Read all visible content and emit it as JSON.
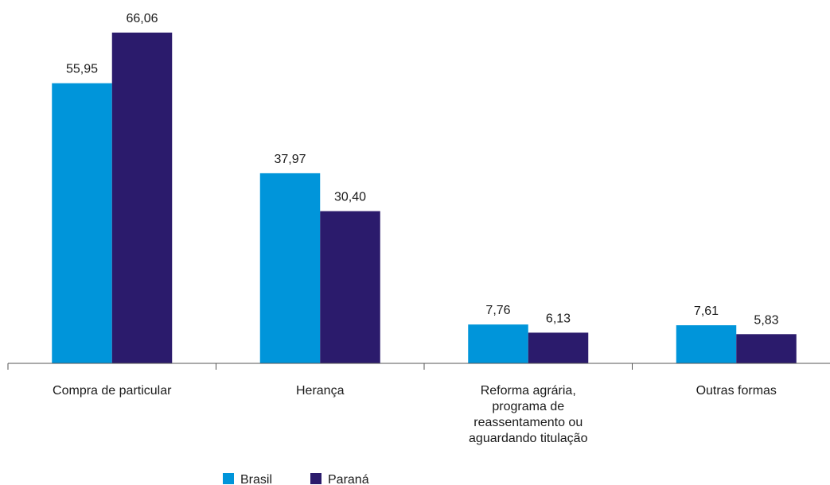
{
  "chart_data": {
    "type": "bar",
    "categories": [
      "Compra de particular",
      "Herança",
      "Reforma agrária,\nprograma de\nreassentamento ou\naguardando titulação",
      "Outras formas"
    ],
    "series": [
      {
        "name": "Brasil",
        "color": "#0095da",
        "values": [
          55.95,
          37.97,
          7.76,
          7.61
        ],
        "value_labels": [
          "55,95",
          "37,97",
          "7,76",
          "7,61"
        ]
      },
      {
        "name": "Paraná",
        "color": "#2b1b6c",
        "values": [
          66.06,
          30.4,
          6.13,
          5.83
        ],
        "value_labels": [
          "66,06",
          "30,40",
          "6,13",
          "5,83"
        ]
      }
    ]
  }
}
